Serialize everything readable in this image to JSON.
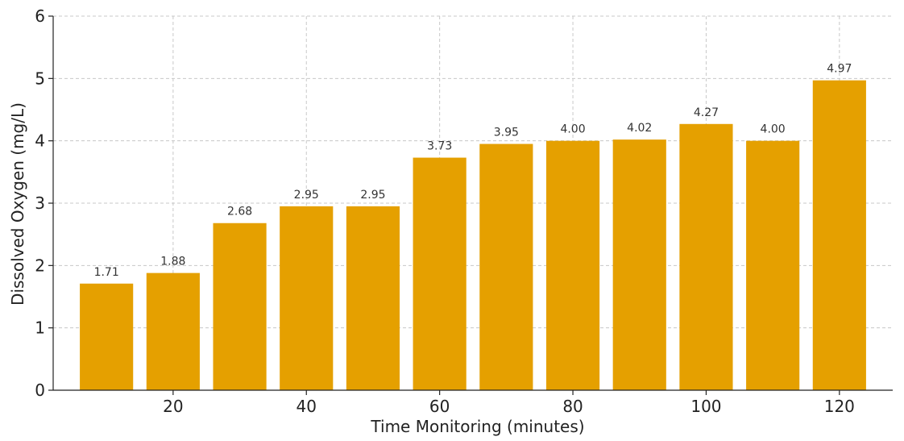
{
  "chart_data": {
    "type": "bar",
    "title": "",
    "xlabel": "Time Monitoring (minutes)",
    "ylabel": "Dissolved Oxygen (mg/L)",
    "x": [
      10,
      20,
      30,
      40,
      50,
      60,
      70,
      80,
      90,
      100,
      110,
      120
    ],
    "values": [
      1.71,
      1.88,
      2.68,
      2.95,
      2.95,
      3.73,
      3.95,
      4.0,
      4.02,
      4.27,
      4.0,
      4.97
    ],
    "value_labels": [
      "1.71",
      "1.88",
      "2.68",
      "2.95",
      "2.95",
      "3.73",
      "3.95",
      "4.00",
      "4.02",
      "4.27",
      "4.00",
      "4.97"
    ],
    "x_ticks": [
      20,
      40,
      60,
      80,
      100,
      120
    ],
    "y_ticks": [
      0,
      1,
      2,
      3,
      4,
      5,
      6
    ],
    "xlim": [
      2,
      128
    ],
    "ylim": [
      0,
      6
    ],
    "grid": true,
    "bar_color": "#E5A000"
  }
}
